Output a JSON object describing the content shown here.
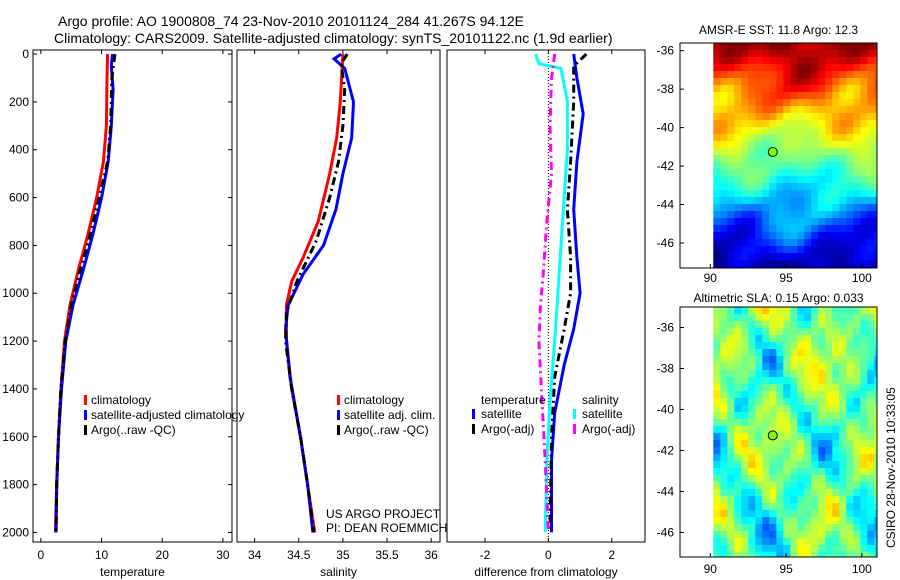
{
  "title_line1": "Argo profile: AO 1900808_74 23-Nov-2010 20101124_284 41.267S 94.12E",
  "title_line2": "Climatology: CARS2009. Satellite-adjusted climatology: synTS_20101122.nc (1.9d earlier)",
  "credit": "CSIRO 28-Nov-2010 10:33:05",
  "project_line1": "US ARGO PROJECT",
  "project_line2": "PI: DEAN ROEMMICH",
  "colors": {
    "climatology": "#ff0000",
    "satellite": "#0000ff",
    "argo": "#000000",
    "sal_satellite": "#00ffff",
    "sal_argo": "#ff00ff"
  },
  "chart_data": [
    {
      "type": "line",
      "id": "temperature",
      "xlabel": "temperature",
      "ylabel": "",
      "xlim": [
        -1.3,
        31.5
      ],
      "ylim": [
        2040,
        -17
      ],
      "xticks": [
        0,
        10,
        20,
        30
      ],
      "yticks": [
        0,
        200,
        400,
        600,
        800,
        1000,
        1200,
        1400,
        1600,
        1800,
        2000
      ],
      "legend": [
        "climatology",
        "satellite-adjusted climatology",
        "Argo(..raw -QC)"
      ],
      "series": [
        {
          "name": "climatology",
          "color": "#ff0000",
          "dash": false,
          "points": [
            [
              11,
              0
            ],
            [
              10.9,
              100
            ],
            [
              10.8,
              300
            ],
            [
              10.3,
              450
            ],
            [
              9.2,
              600
            ],
            [
              7.8,
              750
            ],
            [
              6.2,
              900
            ],
            [
              4.8,
              1050
            ],
            [
              3.9,
              1200
            ],
            [
              3.3,
              1400
            ],
            [
              2.9,
              1600
            ],
            [
              2.6,
              1800
            ],
            [
              2.4,
              2000
            ]
          ]
        },
        {
          "name": "satellite-adjusted climatology",
          "color": "#0000ff",
          "dash": false,
          "points": [
            [
              11.8,
              0
            ],
            [
              11.6,
              50
            ],
            [
              11.9,
              150
            ],
            [
              11.6,
              300
            ],
            [
              11.1,
              450
            ],
            [
              10,
              600
            ],
            [
              8.6,
              750
            ],
            [
              7,
              900
            ],
            [
              5.3,
              1050
            ],
            [
              4.1,
              1200
            ],
            [
              3.4,
              1400
            ],
            [
              2.9,
              1600
            ],
            [
              2.6,
              1800
            ],
            [
              2.5,
              2000
            ]
          ]
        },
        {
          "name": "Argo(..raw -QC)",
          "color": "#000000",
          "dash": true,
          "points": [
            [
              12.2,
              0
            ],
            [
              11.7,
              100
            ],
            [
              11.5,
              300
            ],
            [
              11,
              450
            ],
            [
              9.6,
              600
            ],
            [
              8.2,
              750
            ],
            [
              6.5,
              900
            ],
            [
              5,
              1050
            ],
            [
              4,
              1200
            ],
            [
              3.3,
              1400
            ],
            [
              2.9,
              1600
            ],
            [
              2.6,
              1800
            ],
            [
              2.5,
              2000
            ]
          ]
        }
      ]
    },
    {
      "type": "line",
      "id": "salinity",
      "xlabel": "salinity",
      "ylabel": "",
      "xlim": [
        33.8,
        36.1
      ],
      "ylim": [
        2040,
        -17
      ],
      "xticks": [
        34,
        34.5,
        35,
        35.5,
        36
      ],
      "yticks": [],
      "legend": [
        "climatology",
        "satellite adj. clim.",
        "Argo(..raw -QC)"
      ],
      "series": [
        {
          "name": "climatology",
          "color": "#ff0000",
          "dash": false,
          "points": [
            [
              35.0,
              0
            ],
            [
              34.97,
              200
            ],
            [
              34.93,
              350
            ],
            [
              34.85,
              500
            ],
            [
              34.72,
              700
            ],
            [
              34.55,
              850
            ],
            [
              34.42,
              950
            ],
            [
              34.36,
              1050
            ],
            [
              34.36,
              1200
            ],
            [
              34.42,
              1400
            ],
            [
              34.52,
              1600
            ],
            [
              34.6,
              1800
            ],
            [
              34.68,
              2000
            ]
          ]
        },
        {
          "name": "satellite adj. clim.",
          "color": "#0000ff",
          "dash": false,
          "points": [
            [
              34.98,
              0
            ],
            [
              34.9,
              20
            ],
            [
              35.02,
              60
            ],
            [
              35.12,
              200
            ],
            [
              35.1,
              350
            ],
            [
              35.0,
              500
            ],
            [
              34.92,
              650
            ],
            [
              34.78,
              800
            ],
            [
              34.55,
              920
            ],
            [
              34.38,
              1050
            ],
            [
              34.35,
              1150
            ],
            [
              34.4,
              1350
            ],
            [
              34.52,
              1600
            ],
            [
              34.6,
              1800
            ],
            [
              34.66,
              2000
            ]
          ]
        },
        {
          "name": "Argo(..raw -QC)",
          "color": "#000000",
          "dash": true,
          "points": [
            [
              35.05,
              0
            ],
            [
              34.98,
              40
            ],
            [
              35.02,
              150
            ],
            [
              35.0,
              300
            ],
            [
              34.95,
              450
            ],
            [
              34.85,
              600
            ],
            [
              34.7,
              780
            ],
            [
              34.48,
              950
            ],
            [
              34.36,
              1080
            ],
            [
              34.35,
              1200
            ],
            [
              34.42,
              1400
            ],
            [
              34.52,
              1600
            ],
            [
              34.6,
              1800
            ],
            [
              34.67,
              2000
            ]
          ]
        }
      ]
    },
    {
      "type": "line",
      "id": "difference",
      "xlabel": "difference from climatology",
      "ylabel": "",
      "xlim": [
        -3.2,
        3.05
      ],
      "ylim": [
        2040,
        -17
      ],
      "xticks": [
        -2,
        0,
        2
      ],
      "yticks": [],
      "legend_headers": [
        "temperature",
        "salinity"
      ],
      "legend": [
        "satellite",
        "Argo(-adj)",
        "satellite",
        "Argo(-adj)"
      ],
      "series": [
        {
          "name": "temperature satellite",
          "color": "#0000ff",
          "dash": false,
          "points": [
            [
              0.8,
              0
            ],
            [
              0.9,
              100
            ],
            [
              1.1,
              250
            ],
            [
              0.9,
              450
            ],
            [
              0.8,
              650
            ],
            [
              0.9,
              850
            ],
            [
              1.0,
              1000
            ],
            [
              0.8,
              1150
            ],
            [
              0.5,
              1300
            ],
            [
              0.2,
              1500
            ],
            [
              0.1,
              1700
            ],
            [
              0.1,
              2000
            ]
          ]
        },
        {
          "name": "temperature Argo(-adj)",
          "color": "#000000",
          "dash": true,
          "points": [
            [
              1.2,
              0
            ],
            [
              0.8,
              50
            ],
            [
              0.8,
              200
            ],
            [
              0.7,
              450
            ],
            [
              0.6,
              650
            ],
            [
              0.7,
              850
            ],
            [
              0.7,
              1000
            ],
            [
              0.5,
              1150
            ],
            [
              0.2,
              1350
            ],
            [
              0.1,
              1600
            ],
            [
              0.05,
              2000
            ]
          ]
        },
        {
          "name": "salinity satellite",
          "color": "#00ffff",
          "dash": false,
          "points": [
            [
              -0.4,
              0
            ],
            [
              -0.3,
              40
            ],
            [
              0.4,
              60
            ],
            [
              0.6,
              200
            ],
            [
              0.6,
              400
            ],
            [
              0.5,
              600
            ],
            [
              0.4,
              800
            ],
            [
              0.3,
              1000
            ],
            [
              0.2,
              1200
            ],
            [
              0.05,
              1450
            ],
            [
              -0.05,
              1700
            ],
            [
              -0.1,
              2000
            ]
          ]
        },
        {
          "name": "salinity Argo(-adj)",
          "color": "#ff00ff",
          "dash": true,
          "points": [
            [
              0.2,
              0
            ],
            [
              0.1,
              100
            ],
            [
              0.05,
              300
            ],
            [
              0.1,
              500
            ],
            [
              -0.05,
              700
            ],
            [
              -0.15,
              900
            ],
            [
              -0.25,
              1050
            ],
            [
              -0.3,
              1200
            ],
            [
              -0.2,
              1450
            ],
            [
              -0.1,
              1700
            ],
            [
              0,
              2000
            ]
          ]
        }
      ]
    },
    {
      "type": "heatmap",
      "id": "sst-map",
      "title": "AMSR-E SST: 11.8 Argo: 12.3",
      "xticks": [
        90,
        95,
        100
      ],
      "yticks": [
        -36,
        -38,
        -40,
        -42,
        -44,
        -46
      ],
      "xlim": [
        88,
        101
      ],
      "ylim": [
        -35.6,
        -47.3
      ],
      "data_xlim": [
        90.2,
        101
      ],
      "argo_position": [
        94.12,
        -41.267
      ]
    },
    {
      "type": "heatmap",
      "id": "sla-map",
      "title": "Altimetric SLA: 0.15 Argo: 0.033",
      "xticks": [
        90,
        95,
        100
      ],
      "yticks": [
        -36,
        -38,
        -40,
        -42,
        -44,
        -46
      ],
      "xlim": [
        88,
        101
      ],
      "ylim": [
        -35.0,
        -47.2
      ],
      "data_xlim": [
        90.2,
        101
      ],
      "argo_position": [
        94.12,
        -41.267
      ]
    }
  ]
}
